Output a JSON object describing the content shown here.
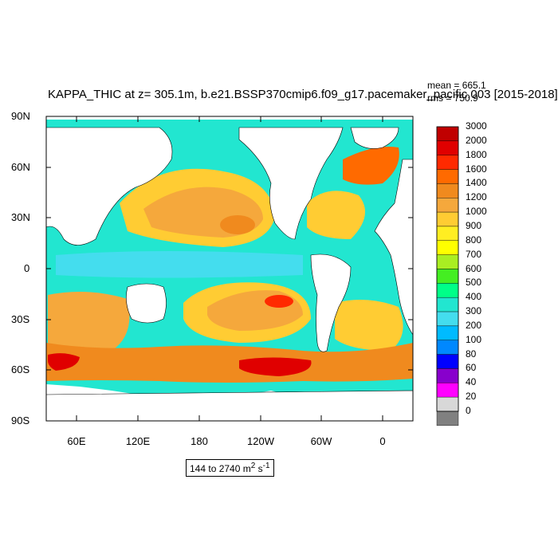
{
  "title": "KAPPA_THIC at z= 305.1m, b.e21.BSSP370cmip6.f09_g17.pacemaker_pacific.003 [2015-2018]",
  "stats": {
    "mean": "mean = 665.1",
    "rms": "rms = 750.9"
  },
  "lat_ticks": [
    "90N",
    "60N",
    "30N",
    "0",
    "30S",
    "60S",
    "90S"
  ],
  "lon_ticks": [
    "60E",
    "120E",
    "180",
    "120W",
    "60W",
    "0"
  ],
  "colorbar": {
    "labels": [
      "3000",
      "2000",
      "1800",
      "1600",
      "1400",
      "1200",
      "1000",
      "900",
      "800",
      "700",
      "600",
      "500",
      "400",
      "300",
      "200",
      "100",
      "80",
      "60",
      "40",
      "20",
      "0"
    ],
    "colors": [
      "#c00000",
      "#e00000",
      "#ff2a00",
      "#ff6a00",
      "#f08a1e",
      "#f5a83c",
      "#ffcc33",
      "#ffee22",
      "#ffff00",
      "#aaee22",
      "#44ee22",
      "#00ff88",
      "#22e6d0",
      "#44ddee",
      "#00bbff",
      "#0088ff",
      "#0000ff",
      "#8800cc",
      "#ff00ff",
      "#d8d8d8",
      "#808080"
    ]
  },
  "range_note": {
    "text": "144 to 2740 m",
    "sup": "2",
    "tail": " s",
    "sup2": "-1"
  },
  "colors": {
    "ocean_base": "#22e6d0",
    "land": "#ffffff",
    "frame": "#000000"
  }
}
